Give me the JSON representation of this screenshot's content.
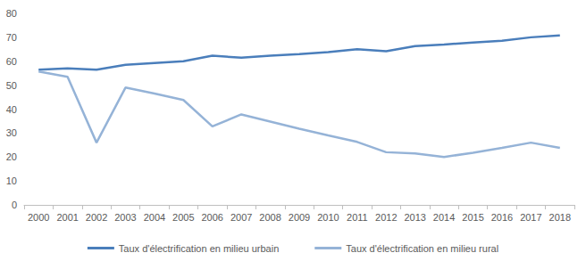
{
  "chart_data": {
    "type": "line",
    "categories": [
      "2000",
      "2001",
      "2002",
      "2003",
      "2004",
      "2005",
      "2006",
      "2007",
      "2008",
      "2009",
      "2010",
      "2011",
      "2012",
      "2013",
      "2014",
      "2015",
      "2016",
      "2017",
      "2018"
    ],
    "series": [
      {
        "name": "Taux d'électrification en milieu urbain",
        "color": "#4a7ebb",
        "values": [
          56.5,
          57,
          56.5,
          58.5,
          59.3,
          60,
          62.3,
          61.5,
          62.3,
          63,
          63.8,
          65,
          64.2,
          66.3,
          67,
          67.8,
          68.6,
          70,
          70.8
        ]
      },
      {
        "name": "Taux d'électrification en milieu rural",
        "color": "#95b3d7",
        "values": [
          55.7,
          53.5,
          26,
          49,
          46.5,
          43.8,
          32.8,
          37.8,
          34.8,
          31.8,
          29,
          26.3,
          22,
          21.5,
          20,
          21.8,
          23.8,
          26,
          23.8
        ]
      }
    ],
    "ylim": [
      0,
      80
    ],
    "yticks": [
      0,
      10,
      20,
      30,
      40,
      50,
      60,
      70,
      80
    ],
    "grid": false,
    "legend": "bottom"
  }
}
